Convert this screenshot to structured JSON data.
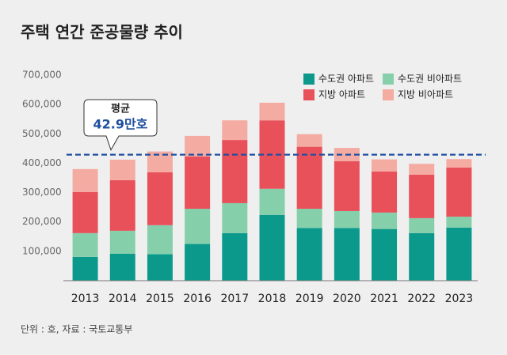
{
  "chart_data": {
    "type": "stacked-bar",
    "title": "주택 연간 준공물량 추이",
    "categories": [
      "2013",
      "2014",
      "2015",
      "2016",
      "2017",
      "2018",
      "2019",
      "2020",
      "2021",
      "2022",
      "2023"
    ],
    "series": [
      {
        "name": "수도권 아파트",
        "color": "#0b998c",
        "values": [
          81000,
          92000,
          90000,
          125000,
          162000,
          224000,
          179000,
          179000,
          176000,
          162000,
          181000
        ]
      },
      {
        "name": "수도권 비아파트",
        "color": "#86cfab",
        "values": [
          81000,
          78000,
          99000,
          120000,
          102000,
          89000,
          66000,
          58000,
          56000,
          51000,
          37000
        ]
      },
      {
        "name": "지방 아파트",
        "color": "#e8505a",
        "values": [
          140000,
          172000,
          180000,
          178000,
          215000,
          233000,
          211000,
          170000,
          140000,
          148000,
          167000
        ]
      },
      {
        "name": "지방 비아파트",
        "color": "#f4aba2",
        "values": [
          78000,
          70000,
          71000,
          70000,
          67000,
          60000,
          43000,
          45000,
          41000,
          37000,
          29000
        ]
      }
    ],
    "ylim": [
      0,
      700000
    ],
    "yticks": [
      {
        "value": 100000,
        "label": "100,000"
      },
      {
        "value": 200000,
        "label": "200,000"
      },
      {
        "value": 300000,
        "label": "300,000"
      },
      {
        "value": 400000,
        "label": "400,000"
      },
      {
        "value": 500000,
        "label": "500,000"
      },
      {
        "value": 600000,
        "label": "600,000"
      },
      {
        "value": 700000,
        "label": "700,000"
      }
    ],
    "average": {
      "value": 429000,
      "title": "평균",
      "label": "42.9만호",
      "color": "#1f4fa0"
    },
    "legend": "top-right",
    "note": "단위 : 호, 자료 : 국토교통부"
  }
}
